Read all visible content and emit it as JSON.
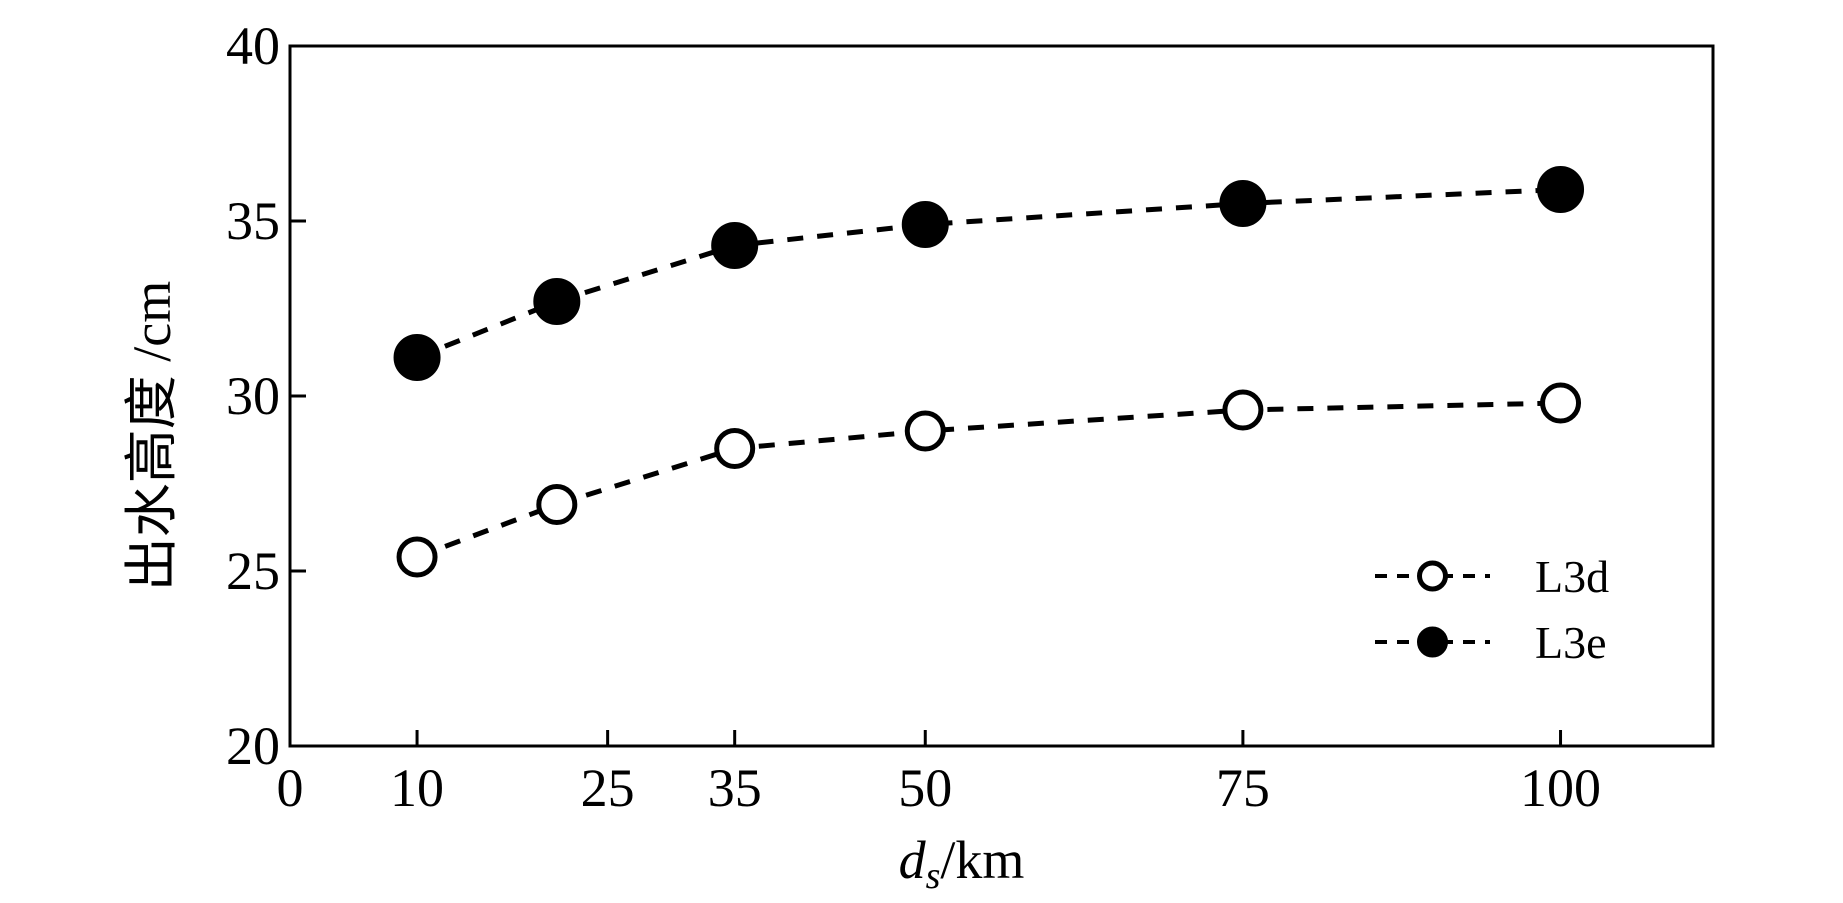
{
  "chart_data": {
    "type": "line",
    "title": "",
    "xlabel": "d_s/km",
    "xlabel_parts": {
      "var": "d",
      "sub": "s",
      "unit": "/km"
    },
    "ylabel": "出水高度 /cm",
    "xlim": [
      0,
      112
    ],
    "ylim": [
      20,
      40
    ],
    "xticks": [
      0,
      10,
      25,
      35,
      50,
      75,
      100
    ],
    "yticks": [
      20,
      25,
      30,
      35,
      40
    ],
    "x": [
      10,
      21,
      35,
      50,
      75,
      100
    ],
    "series": [
      {
        "name": "L3d",
        "marker": "open-circle",
        "values": [
          25.4,
          26.9,
          28.5,
          29.0,
          29.6,
          29.8
        ]
      },
      {
        "name": "L3e",
        "marker": "filled-circle",
        "values": [
          31.1,
          32.7,
          34.3,
          34.9,
          35.5,
          35.9
        ]
      }
    ],
    "legend_position": "lower-right",
    "line_style": "dashed",
    "grid": false,
    "colors": {
      "line": "#000000",
      "background": "#ffffff"
    }
  }
}
